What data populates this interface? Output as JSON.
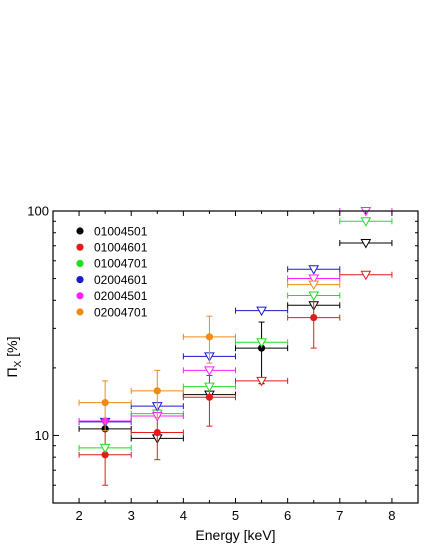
{
  "chart_data": {
    "type": "scatter",
    "title": "",
    "xlabel": "Energy [keV]",
    "ylabel_main": "Π",
    "ylabel_sub": "X",
    "ylabel_unit": " [%]",
    "xlim": [
      1.5,
      8.5
    ],
    "ylim": [
      5,
      100
    ],
    "yscale": "log",
    "x_ticks": [
      "2",
      "3",
      "4",
      "5",
      "6",
      "7",
      "8"
    ],
    "y_ticks": [
      "10",
      "100"
    ],
    "grid": false,
    "legend_position": "top-left",
    "markers": {
      "filled": "measurement",
      "open_triangle_down": "upper limit"
    },
    "series": [
      {
        "name": "01004501",
        "color": "#000000",
        "points": [
          {
            "x": 2.5,
            "xerr": 0.5,
            "y": 10.7,
            "ylow": 10.7,
            "yhigh": 10.7,
            "limit": false
          },
          {
            "x": 3.5,
            "xerr": 0.5,
            "y": 9.7,
            "limit": true
          },
          {
            "x": 4.5,
            "xerr": 0.5,
            "y": 15.2,
            "limit": true
          },
          {
            "x": 5.5,
            "xerr": 0.5,
            "y": 24.5,
            "ylow": 17.0,
            "yhigh": 32.0,
            "limit": false
          },
          {
            "x": 6.5,
            "xerr": 0.5,
            "y": 38.0,
            "limit": true
          },
          {
            "x": 7.5,
            "xerr": 0.5,
            "y": 72.0,
            "limit": true
          }
        ]
      },
      {
        "name": "01004601",
        "color": "#e41a1c",
        "points": [
          {
            "x": 2.5,
            "xerr": 0.5,
            "y": 8.2,
            "ylow": 6.0,
            "yhigh": 10.5,
            "limit": false
          },
          {
            "x": 3.5,
            "xerr": 0.5,
            "y": 10.3,
            "ylow": 7.8,
            "yhigh": 13.0,
            "limit": false
          },
          {
            "x": 4.5,
            "xerr": 0.5,
            "y": 14.8,
            "ylow": 11.0,
            "yhigh": 18.5,
            "limit": false
          },
          {
            "x": 5.5,
            "xerr": 0.5,
            "y": 17.5,
            "limit": true
          },
          {
            "x": 6.5,
            "xerr": 0.5,
            "y": 33.5,
            "ylow": 24.5,
            "yhigh": 43.0,
            "limit": false
          },
          {
            "x": 7.5,
            "xerr": 0.5,
            "y": 52.0,
            "limit": true
          }
        ]
      },
      {
        "name": "01004701",
        "color": "#22dd22",
        "points": [
          {
            "x": 2.5,
            "xerr": 0.5,
            "y": 8.8,
            "limit": true
          },
          {
            "x": 3.5,
            "xerr": 0.5,
            "y": 12.5,
            "limit": true
          },
          {
            "x": 4.5,
            "xerr": 0.5,
            "y": 16.5,
            "limit": true
          },
          {
            "x": 5.5,
            "xerr": 0.5,
            "y": 26.0,
            "limit": true
          },
          {
            "x": 6.5,
            "xerr": 0.5,
            "y": 42.0,
            "limit": true
          },
          {
            "x": 7.5,
            "xerr": 0.5,
            "y": 90.0,
            "limit": true
          }
        ]
      },
      {
        "name": "02004601",
        "color": "#1a1acc",
        "points": [
          {
            "x": 2.5,
            "xerr": 0.5,
            "y": 11.5,
            "limit": true
          },
          {
            "x": 3.5,
            "xerr": 0.5,
            "y": 13.5,
            "limit": true
          },
          {
            "x": 4.5,
            "xerr": 0.5,
            "y": 22.5,
            "limit": true
          },
          {
            "x": 5.5,
            "xerr": 0.5,
            "y": 36.0,
            "limit": true
          },
          {
            "x": 6.5,
            "xerr": 0.5,
            "y": 55.0,
            "limit": true
          }
        ]
      },
      {
        "name": "02004501",
        "color": "#ff22ff",
        "points": [
          {
            "x": 2.5,
            "xerr": 0.5,
            "y": 11.6,
            "ylow": 11.6,
            "yhigh": 11.6,
            "limit": false
          },
          {
            "x": 3.5,
            "xerr": 0.5,
            "y": 12.2,
            "limit": true
          },
          {
            "x": 4.5,
            "xerr": 0.5,
            "y": 19.5,
            "limit": true
          },
          {
            "x": 6.5,
            "xerr": 0.5,
            "y": 50.0,
            "limit": true
          },
          {
            "x": 7.5,
            "xerr": 0.5,
            "y": 100.0,
            "limit": true
          }
        ]
      },
      {
        "name": "02004701",
        "color": "#f08c14",
        "points": [
          {
            "x": 2.5,
            "xerr": 0.5,
            "y": 14.0,
            "ylow": 10.5,
            "yhigh": 17.5,
            "limit": false
          },
          {
            "x": 3.5,
            "xerr": 0.5,
            "y": 15.8,
            "ylow": 12.0,
            "yhigh": 19.5,
            "limit": false
          },
          {
            "x": 4.5,
            "xerr": 0.5,
            "y": 27.5,
            "ylow": 21.0,
            "yhigh": 34.0,
            "limit": false
          },
          {
            "x": 6.5,
            "xerr": 0.5,
            "y": 47.0,
            "limit": true
          }
        ]
      }
    ]
  }
}
